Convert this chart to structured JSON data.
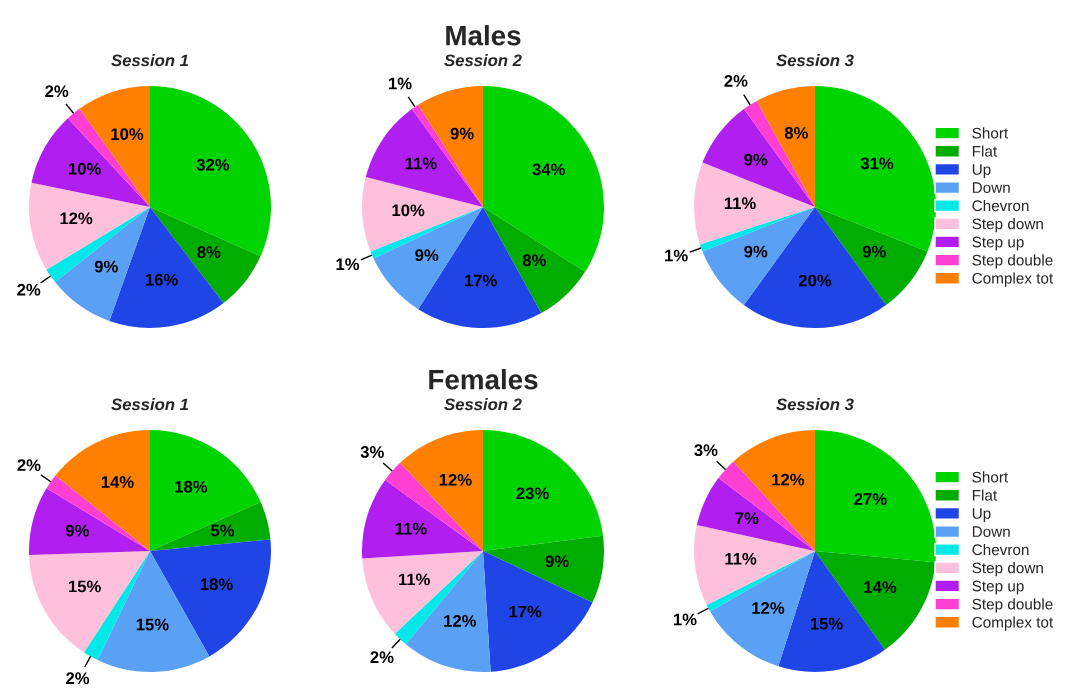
{
  "chart_data": [
    {
      "type": "pie",
      "title": "Session 1",
      "annotations": [
        "Males"
      ],
      "categories": [
        null,
        null,
        null,
        null,
        null,
        null,
        null,
        null,
        null
      ],
      "values": [
        32,
        8,
        16,
        9,
        2,
        12,
        10,
        2,
        10
      ],
      "value_labels": [
        "32%",
        "8%",
        "16%",
        "9%",
        "2%",
        "12%",
        "10%",
        "2%",
        "10%"
      ],
      "colors": [
        "#00d400",
        "#00ad00",
        "#1f45e6",
        "#5aa0f5",
        "#00e8e8",
        "#ffc0dc",
        "#b01ff0",
        "#ff3fd2",
        "#ff8000"
      ]
    },
    {
      "type": "pie",
      "title": "Session 2",
      "categories": [
        null,
        null,
        null,
        null,
        null,
        null,
        null,
        null,
        null
      ],
      "values": [
        34,
        8,
        17,
        9,
        1,
        10,
        11,
        1,
        9
      ],
      "value_labels": [
        "34%",
        "8%",
        "17%",
        "9%",
        "1%",
        "10%",
        "11%",
        "1%",
        "9%"
      ],
      "colors": [
        "#00d400",
        "#00ad00",
        "#1f45e6",
        "#5aa0f5",
        "#00e8e8",
        "#ffc0dc",
        "#b01ff0",
        "#ff3fd2",
        "#ff8000"
      ]
    },
    {
      "type": "pie",
      "title": "Session 3",
      "legend": "right",
      "categories": [
        "Short",
        "Flat",
        "Up",
        "Down",
        "Chevron",
        "Step down",
        "Step up",
        "Step double",
        "Complex tot"
      ],
      "values": [
        31,
        9,
        20,
        9,
        1,
        11,
        9,
        2,
        8
      ],
      "value_labels": [
        "31%",
        "9%",
        "20%",
        "9%",
        "1%",
        "11%",
        "9%",
        "2%",
        "8%"
      ],
      "colors": [
        "#00d400",
        "#00ad00",
        "#1f45e6",
        "#5aa0f5",
        "#00e8e8",
        "#ffc0dc",
        "#b01ff0",
        "#ff3fd2",
        "#ff8000"
      ]
    },
    {
      "type": "pie",
      "title": "Session 1",
      "annotations": [
        "Females"
      ],
      "categories": [
        null,
        null,
        null,
        null,
        null,
        null,
        null,
        null,
        null
      ],
      "values": [
        18,
        5,
        18,
        15,
        2,
        15,
        9,
        2,
        14
      ],
      "value_labels": [
        "18%",
        "5%",
        "18%",
        "15%",
        "2%",
        "15%",
        "9%",
        "2%",
        "14%"
      ],
      "colors": [
        "#00d400",
        "#00ad00",
        "#1f45e6",
        "#5aa0f5",
        "#00e8e8",
        "#ffc0dc",
        "#b01ff0",
        "#ff3fd2",
        "#ff8000"
      ]
    },
    {
      "type": "pie",
      "title": "Session 2",
      "categories": [
        null,
        null,
        null,
        null,
        null,
        null,
        null,
        null,
        null
      ],
      "values": [
        23,
        9,
        17,
        12,
        2,
        11,
        11,
        3,
        12
      ],
      "value_labels": [
        "23%",
        "9%",
        "17%",
        "12%",
        "2%",
        "11%",
        "11%",
        "3%",
        "12%"
      ],
      "colors": [
        "#00d400",
        "#00ad00",
        "#1f45e6",
        "#5aa0f5",
        "#00e8e8",
        "#ffc0dc",
        "#b01ff0",
        "#ff3fd2",
        "#ff8000"
      ]
    },
    {
      "type": "pie",
      "title": "Session 3",
      "legend": "right",
      "categories": [
        "Short",
        "Flat",
        "Up",
        "Down",
        "Chevron",
        "Step down",
        "Step up",
        "Step double",
        "Complex tot"
      ],
      "values": [
        27,
        14,
        15,
        12,
        1,
        11,
        7,
        3,
        12
      ],
      "value_labels": [
        "27%",
        "14%",
        "15%",
        "12%",
        "1%",
        "11%",
        "7%",
        "3%",
        "12%"
      ],
      "colors": [
        "#00d400",
        "#00ad00",
        "#1f45e6",
        "#5aa0f5",
        "#00e8e8",
        "#ffc0dc",
        "#b01ff0",
        "#ff3fd2",
        "#ff8000"
      ]
    }
  ]
}
